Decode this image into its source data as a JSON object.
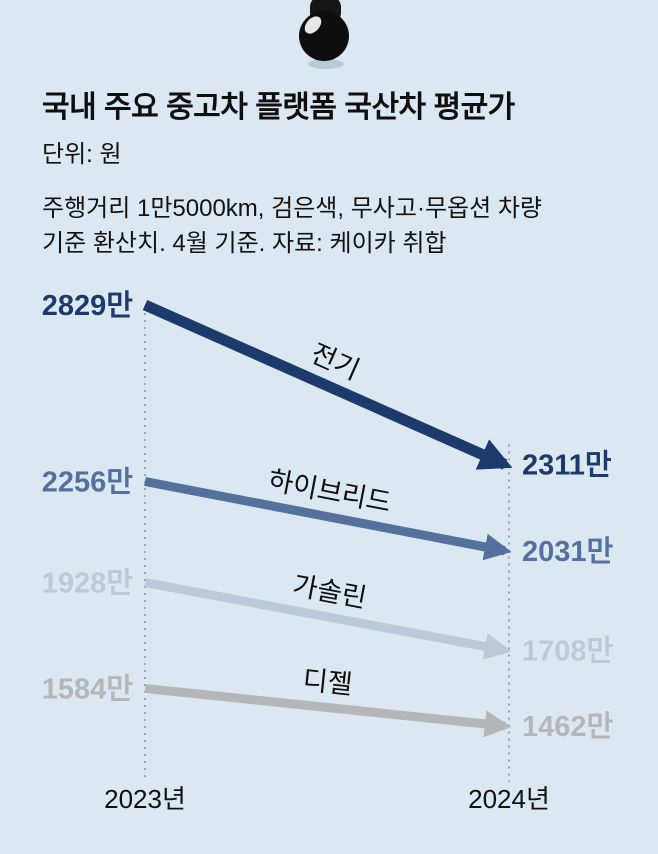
{
  "header": {
    "title": "국내 주요 중고차 플랫폼 국산차 평균가",
    "unit_label": "단위: 원",
    "description_line1": "주행거리 1만5000km, 검은색, 무사고·무옵션 차량",
    "description_line2": "기준 환산치. 4월 기준.  자료: 케이카 취합"
  },
  "chart_data": {
    "type": "line",
    "title": "국내 주요 중고차 플랫폼 국산차 평균가",
    "unit": "만원",
    "x_categories": [
      "2023년",
      "2024년"
    ],
    "series": [
      {
        "name": "전기",
        "values": [
          2829,
          2311
        ],
        "value_labels": [
          "2829만",
          "2311만"
        ],
        "color": "#1c3a6b"
      },
      {
        "name": "하이브리드",
        "values": [
          2256,
          2031
        ],
        "value_labels": [
          "2256만",
          "2031만"
        ],
        "color": "#54719d"
      },
      {
        "name": "가솔린",
        "values": [
          1928,
          1708
        ],
        "value_labels": [
          "1928만",
          "1708만"
        ],
        "color": "#bcc9d9"
      },
      {
        "name": "디젤",
        "values": [
          1584,
          1462
        ],
        "value_labels": [
          "1584만",
          "1462만"
        ],
        "color": "#b5b6b8"
      }
    ],
    "source_note": "자료: 케이카 취합",
    "legend_position": "on-line",
    "grid": "dotted-vertical",
    "ylim": [
      1400,
      2900
    ]
  },
  "colors": {
    "background": "#dce8f1",
    "text": "#101010",
    "dotted_line": "#8f9499",
    "pin": "#121212"
  }
}
